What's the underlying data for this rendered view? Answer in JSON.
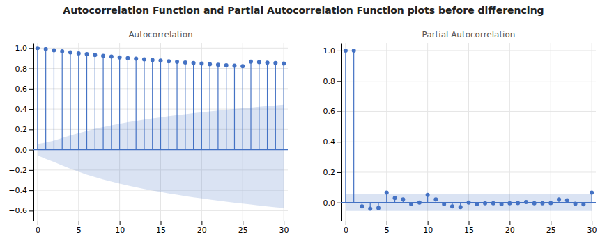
{
  "title": "Autocorrelation Function and Partial Autocorrelation Function plots before differencing",
  "chart_data": [
    {
      "type": "stem",
      "title": "Autocorrelation",
      "marker": "circle",
      "color": "#4472c4",
      "grid": true,
      "x": [
        0,
        1,
        2,
        3,
        4,
        5,
        6,
        7,
        8,
        9,
        10,
        11,
        12,
        13,
        14,
        15,
        16,
        17,
        18,
        19,
        20,
        21,
        22,
        23,
        24,
        25,
        26,
        27,
        28,
        29,
        30
      ],
      "values": [
        1.0,
        0.99,
        0.978,
        0.968,
        0.957,
        0.948,
        0.94,
        0.932,
        0.924,
        0.916,
        0.909,
        0.902,
        0.896,
        0.89,
        0.883,
        0.877,
        0.871,
        0.865,
        0.859,
        0.853,
        0.848,
        0.842,
        0.837,
        0.832,
        0.827,
        0.822,
        0.867,
        0.862,
        0.857,
        0.853,
        0.848
      ],
      "conf_upper": [
        0.055,
        0.07,
        0.09,
        0.115,
        0.14,
        0.163,
        0.185,
        0.205,
        0.223,
        0.24,
        0.255,
        0.27,
        0.283,
        0.296,
        0.308,
        0.319,
        0.33,
        0.34,
        0.35,
        0.359,
        0.368,
        0.377,
        0.385,
        0.393,
        0.401,
        0.408,
        0.415,
        0.422,
        0.429,
        0.436,
        0.443
      ],
      "conf_lower": [
        -0.055,
        -0.09,
        -0.12,
        -0.155,
        -0.188,
        -0.217,
        -0.245,
        -0.27,
        -0.293,
        -0.314,
        -0.334,
        -0.353,
        -0.37,
        -0.387,
        -0.402,
        -0.417,
        -0.431,
        -0.444,
        -0.457,
        -0.469,
        -0.48,
        -0.491,
        -0.502,
        -0.512,
        -0.522,
        -0.531,
        -0.54,
        -0.549,
        -0.558,
        -0.566,
        -0.574
      ],
      "xlim": [
        -0.5,
        30.5
      ],
      "xticks": [
        0,
        5,
        10,
        15,
        20,
        25,
        30
      ],
      "ylim": [
        -0.7,
        1.05
      ],
      "yticks": [
        {
          "value": -0.6,
          "label": "−0.6"
        },
        {
          "value": -0.4,
          "label": "−0.4"
        },
        {
          "value": -0.2,
          "label": "−0.2"
        },
        {
          "value": 0.0,
          "label": "0.0"
        },
        0.2,
        0.4,
        0.6,
        0.8,
        {
          "value": 1.0,
          "label": "1.0"
        }
      ]
    },
    {
      "type": "stem",
      "title": "Partial Autocorrelation",
      "marker": "circle",
      "color": "#4472c4",
      "grid": true,
      "x": [
        0,
        1,
        2,
        3,
        4,
        5,
        6,
        7,
        8,
        9,
        10,
        11,
        12,
        13,
        14,
        15,
        16,
        17,
        18,
        19,
        20,
        21,
        22,
        23,
        24,
        25,
        26,
        27,
        28,
        29,
        30
      ],
      "values": [
        1.0,
        1.0,
        -0.025,
        -0.04,
        -0.035,
        0.065,
        0.03,
        0.02,
        -0.01,
        0.0,
        0.05,
        0.02,
        -0.01,
        -0.025,
        -0.03,
        0.0,
        -0.01,
        -0.005,
        -0.005,
        -0.01,
        -0.005,
        -0.003,
        0.003,
        -0.005,
        -0.005,
        -0.003,
        0.02,
        0.015,
        -0.008,
        -0.012,
        0.065
      ],
      "conf_upper": [
        0.055,
        0.055,
        0.055,
        0.055,
        0.055,
        0.055,
        0.055,
        0.055,
        0.055,
        0.055,
        0.055,
        0.055,
        0.055,
        0.055,
        0.055,
        0.055,
        0.055,
        0.055,
        0.055,
        0.055,
        0.055,
        0.055,
        0.055,
        0.055,
        0.055,
        0.055,
        0.055,
        0.055,
        0.055,
        0.055,
        0.055
      ],
      "conf_lower": [
        -0.055,
        -0.055,
        -0.055,
        -0.055,
        -0.055,
        -0.055,
        -0.055,
        -0.055,
        -0.055,
        -0.055,
        -0.055,
        -0.055,
        -0.055,
        -0.055,
        -0.055,
        -0.055,
        -0.055,
        -0.055,
        -0.055,
        -0.055,
        -0.055,
        -0.055,
        -0.055,
        -0.055,
        -0.055,
        -0.055,
        -0.055,
        -0.055,
        -0.055,
        -0.055,
        -0.055
      ],
      "xlim": [
        -0.5,
        30.5
      ],
      "xticks": [
        0,
        5,
        10,
        15,
        20,
        25,
        30
      ],
      "ylim": [
        -0.12,
        1.05
      ],
      "yticks": [
        {
          "value": 0.0,
          "label": "0.0"
        },
        0.2,
        0.4,
        0.6,
        0.8,
        {
          "value": 1.0,
          "label": "1.0"
        }
      ]
    }
  ]
}
